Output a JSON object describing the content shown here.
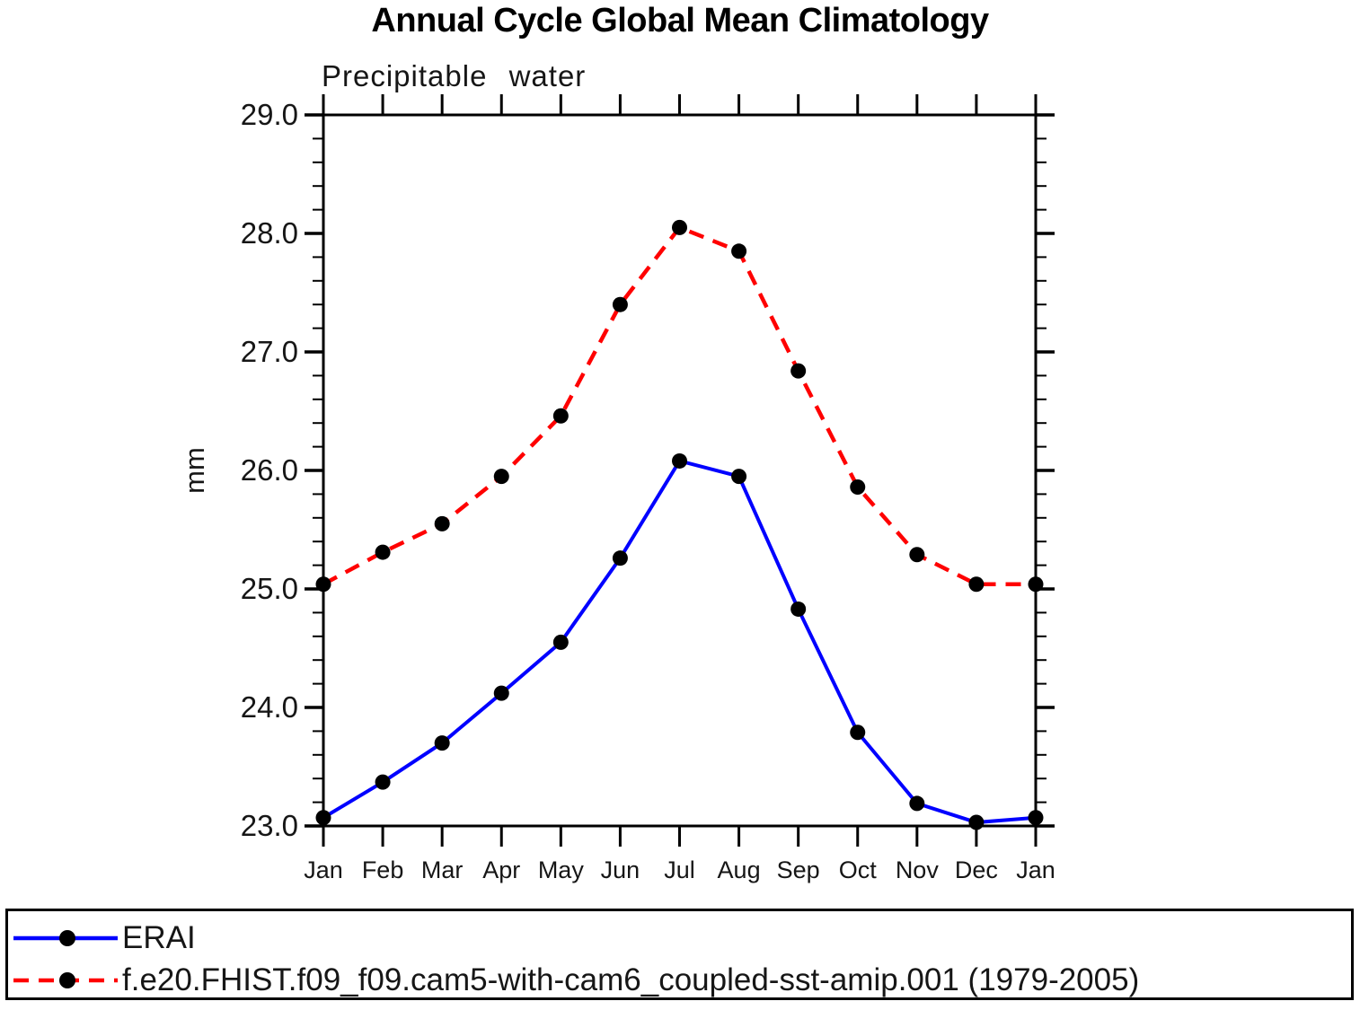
{
  "page": {
    "background": "#ffffff"
  },
  "title": "Annual Cycle Global Mean Climatology",
  "chart_data": {
    "type": "line",
    "title": "Annual Cycle Global Mean Climatology",
    "subtitle": "Precipitable water",
    "ylabel": "mm",
    "xlabel": "",
    "x_labels": [
      "Jan",
      "Feb",
      "Mar",
      "Apr",
      "May",
      "Jun",
      "Jul",
      "Aug",
      "Sep",
      "Oct",
      "Nov",
      "Dec",
      "Jan"
    ],
    "ylim": [
      23.0,
      29.0
    ],
    "yticks": [
      23.0,
      24.0,
      25.0,
      26.0,
      27.0,
      28.0,
      29.0
    ],
    "ytick_labels": [
      "23.0",
      "24.0",
      "25.0",
      "26.0",
      "27.0",
      "28.0",
      "29.0"
    ],
    "ytick_minor_interval": 0.2,
    "grid": false,
    "legend_position": "bottom-left-box",
    "axis_color": "#000000",
    "marker_color": "#000000",
    "series": [
      {
        "name": "ERAI",
        "color": "#0000ff",
        "line_style": "solid",
        "line_width": 4,
        "marker": "filled-circle",
        "values": [
          23.07,
          23.37,
          23.7,
          24.12,
          24.55,
          25.26,
          26.08,
          25.95,
          24.83,
          23.79,
          23.19,
          23.03,
          23.07
        ]
      },
      {
        "name": "f.e20.FHIST.f09_f09.cam5-with-cam6_coupled-sst-amip.001 (1979-2005)",
        "color": "#ff0000",
        "line_style": "dashed",
        "line_width": 4.5,
        "marker": "filled-circle",
        "values": [
          25.04,
          25.31,
          25.55,
          25.95,
          26.46,
          27.4,
          28.05,
          27.85,
          26.84,
          25.86,
          25.29,
          25.04,
          25.04
        ]
      }
    ]
  }
}
